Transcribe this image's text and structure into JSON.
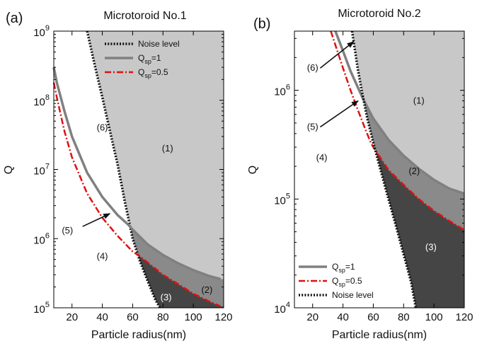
{
  "chart_data": [
    {
      "panel_label": "(a)",
      "type": "line",
      "title": "Microtoroid No.1",
      "xlabel": "Particle radius(nm)",
      "ylabel": "Q",
      "xlim": [
        8,
        120
      ],
      "ylim": [
        100000,
        1000000000
      ],
      "yscale": "log",
      "x_ticks": [
        "20",
        "40",
        "60",
        "80",
        "100",
        "120"
      ],
      "y_ticks": [
        {
          "base": "10",
          "exp": "5"
        },
        {
          "base": "10",
          "exp": "6"
        },
        {
          "base": "10",
          "exp": "7"
        },
        {
          "base": "10",
          "exp": "8"
        },
        {
          "base": "10",
          "exp": "9"
        }
      ],
      "grid": false,
      "legend_position": "top-right",
      "legend": [
        {
          "base": "Noise level",
          "sub": "",
          "tail": ""
        },
        {
          "base": "Q",
          "sub": "sp",
          "tail": "=1"
        },
        {
          "base": "Q",
          "sub": "sp",
          "tail": "=0.5"
        }
      ],
      "series": [
        {
          "name": "Noise level",
          "color": "#111111",
          "style": "dotted",
          "x": [
            30,
            35,
            40,
            45,
            50,
            55,
            60,
            65,
            70,
            75,
            78
          ],
          "y": [
            1000000000.0,
            320000000.0,
            110000000.0,
            36000000.0,
            12000000.0,
            3300000.0,
            1000000.0,
            460000.0,
            240000.0,
            130000.0,
            100000.0
          ]
        },
        {
          "name": "Qsp=1",
          "color": "#808080",
          "style": "solid",
          "x": [
            8,
            10,
            15,
            20,
            30,
            40,
            50,
            57,
            60,
            70,
            80,
            90,
            100,
            110,
            118
          ],
          "y": [
            300000000.0,
            180000000.0,
            70000000.0,
            30000000.0,
            9000000.0,
            4000000.0,
            2200000.0,
            1600000.0,
            1350000.0,
            820000.0,
            580000.0,
            440000.0,
            350000.0,
            290000.0,
            260000.0
          ]
        },
        {
          "name": "Qsp=0.5",
          "color": "#dd1111",
          "style": "dashdot",
          "x": [
            8,
            10,
            15,
            20,
            30,
            40,
            50,
            60,
            64,
            70,
            80,
            90,
            100,
            110,
            118
          ],
          "y": [
            180000000.0,
            110000000.0,
            36000000.0,
            15000000.0,
            4500000.0,
            2000000.0,
            1100000.0,
            650000.0,
            570000.0,
            450000.0,
            300000.0,
            220000.0,
            160000.0,
            125000.0,
            105000.0
          ]
        }
      ],
      "region_labels": [
        {
          "text": "(1)",
          "x": 83,
          "y": 20000000.0
        },
        {
          "text": "(2)",
          "x": 109,
          "y": 180000.0
        },
        {
          "text": "(3)",
          "x": 82,
          "y": 140000.0
        },
        {
          "text": "(4)",
          "x": 40,
          "y": 550000.0
        },
        {
          "text": "(5)",
          "x": 17,
          "y": 1300000.0
        },
        {
          "text": "(6)",
          "x": 40,
          "y": 40000000.0
        }
      ],
      "arrows": [
        {
          "from": {
            "x": 27,
            "y": 1500000.0
          },
          "to": {
            "x": 45,
            "y": 2300000.0
          }
        }
      ]
    },
    {
      "panel_label": "(b)",
      "type": "line",
      "title": "Microtoroid No.2",
      "xlabel": "Particle radius(nm)",
      "ylabel": "Q",
      "xlim": [
        8,
        120
      ],
      "ylim": [
        10000,
        3500000
      ],
      "yscale": "log",
      "x_ticks": [
        "20",
        "40",
        "60",
        "80",
        "100",
        "120"
      ],
      "y_ticks": [
        {
          "base": "10",
          "exp": "4"
        },
        {
          "base": "10",
          "exp": "5"
        },
        {
          "base": "10",
          "exp": "6"
        }
      ],
      "grid": false,
      "legend_position": "bottom-left",
      "legend": [
        {
          "base": "Q",
          "sub": "sp",
          "tail": "=1"
        },
        {
          "base": "Q",
          "sub": "sp",
          "tail": "=0.5"
        },
        {
          "base": "Noise level",
          "sub": "",
          "tail": ""
        }
      ],
      "series": [
        {
          "name": "Qsp=1",
          "color": "#808080",
          "style": "solid",
          "x": [
            35,
            40,
            45,
            50,
            53,
            60,
            70,
            80,
            90,
            100,
            110,
            120
          ],
          "y": [
            3500000.0,
            2300000.0,
            1500000.0,
            1050000.0,
            850000.0,
            550000.0,
            350000.0,
            250000.0,
            190000.0,
            150000.0,
            125000.0,
            112000.0
          ]
        },
        {
          "name": "Qsp=0.5",
          "color": "#dd1111",
          "style": "dashdot",
          "x": [
            32,
            35,
            40,
            45,
            50,
            55,
            58,
            60,
            70,
            80,
            90,
            100,
            110,
            120
          ],
          "y": [
            3500000.0,
            2600000.0,
            1600000.0,
            1000000.0,
            650000.0,
            430000.0,
            340000.0,
            300000.0,
            185000.0,
            135000.0,
            100000.0,
            78000.0,
            63000.0,
            52000.0
          ]
        },
        {
          "name": "Noise level",
          "color": "#111111",
          "style": "dotted",
          "x": [
            46,
            50,
            53,
            56,
            60,
            65,
            70,
            75,
            80,
            85,
            88
          ],
          "y": [
            3500000.0,
            1500000.0,
            900000.0,
            550000.0,
            330000.0,
            180000.0,
            100000.0,
            56000.0,
            31000.0,
            17000.0,
            10000.0
          ]
        }
      ],
      "region_labels": [
        {
          "text": "(1)",
          "x": 90,
          "y": 800000.0
        },
        {
          "text": "(2)",
          "x": 87,
          "y": 180000.0
        },
        {
          "text": "(3)",
          "x": 98,
          "y": 36000.0
        },
        {
          "text": "(4)",
          "x": 26,
          "y": 240000.0
        },
        {
          "text": "(5)",
          "x": 20,
          "y": 460000.0
        },
        {
          "text": "(6)",
          "x": 20,
          "y": 1600000.0
        }
      ],
      "arrows": [
        {
          "from": {
            "x": 25,
            "y": 1600000.0
          },
          "to": {
            "x": 47,
            "y": 2800000.0
          }
        },
        {
          "from": {
            "x": 25,
            "y": 460000.0
          },
          "to": {
            "x": 50,
            "y": 800000.0
          }
        }
      ]
    }
  ]
}
